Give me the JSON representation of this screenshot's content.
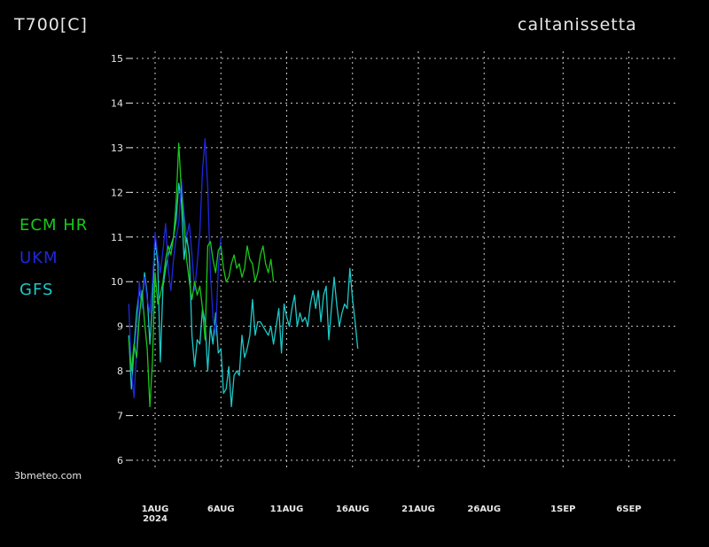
{
  "header": {
    "variable": "T700[C]",
    "location": "caltanissetta"
  },
  "credit": "3bmeteo.com",
  "colors": {
    "background": "#000000",
    "grid": "#c8c8c8",
    "text": "#e6e6e6"
  },
  "chart_data": {
    "type": "line",
    "title": "T700[C]",
    "ylim": [
      5.8,
      15.2
    ],
    "yticks": [
      6,
      7,
      8,
      9,
      10,
      11,
      12,
      13,
      14,
      15
    ],
    "xlim": [
      -2.2,
      42
    ],
    "xticks": [
      {
        "day": 0,
        "label": "1AUG",
        "sub": "2024"
      },
      {
        "day": 5,
        "label": "6AUG",
        "sub": ""
      },
      {
        "day": 10,
        "label": "11AUG",
        "sub": ""
      },
      {
        "day": 15,
        "label": "16AUG",
        "sub": ""
      },
      {
        "day": 20,
        "label": "21AUG",
        "sub": ""
      },
      {
        "day": 25,
        "label": "26AUG",
        "sub": ""
      },
      {
        "day": 31,
        "label": "1SEP",
        "sub": ""
      },
      {
        "day": 36,
        "label": "6SEP",
        "sub": ""
      }
    ],
    "grid": true,
    "legend_position": "left",
    "series": [
      {
        "name": "ECM HR",
        "color": "#19c819",
        "x": [
          -2.0,
          -1.8,
          -1.6,
          -1.4,
          -1.2,
          -1.0,
          -0.8,
          -0.6,
          -0.4,
          -0.2,
          0.0,
          0.2,
          0.4,
          0.6,
          0.8,
          1.0,
          1.2,
          1.4,
          1.6,
          1.8,
          2.0,
          2.2,
          2.4,
          2.6,
          2.8,
          3.0,
          3.2,
          3.4,
          3.6,
          3.8,
          4.0,
          4.2,
          4.4,
          4.6,
          4.8,
          5.0,
          5.2,
          5.4,
          5.6,
          5.8,
          6.0,
          6.2,
          6.4,
          6.6,
          6.8,
          7.0,
          7.2,
          7.4,
          7.6,
          7.8,
          8.0,
          8.2,
          8.4,
          8.6,
          8.8,
          9.0
        ],
        "y": [
          8.7,
          8.0,
          8.6,
          8.3,
          9.2,
          9.8,
          9.1,
          8.5,
          7.2,
          8.2,
          10.2,
          9.5,
          9.7,
          10.0,
          10.5,
          10.8,
          10.6,
          11.0,
          11.8,
          13.1,
          12.0,
          11.3,
          10.5,
          10.0,
          9.6,
          10.0,
          9.7,
          9.9,
          9.4,
          8.7,
          10.8,
          10.9,
          10.5,
          10.2,
          10.7,
          10.8,
          10.3,
          10.0,
          10.1,
          10.4,
          10.6,
          10.3,
          10.4,
          10.1,
          10.3,
          10.8,
          10.5,
          10.4,
          10.0,
          10.2,
          10.6,
          10.8,
          10.4,
          10.2,
          10.5,
          10.0
        ]
      },
      {
        "name": "UKM",
        "color": "#1e28dc",
        "x": [
          -2.0,
          -1.8,
          -1.6,
          -1.4,
          -1.2,
          -1.0,
          -0.8,
          -0.6,
          -0.4,
          -0.2,
          0.0,
          0.2,
          0.4,
          0.6,
          0.8,
          1.0,
          1.2,
          1.4,
          1.6,
          1.8,
          2.0,
          2.2,
          2.4,
          2.6,
          2.8,
          3.0,
          3.2,
          3.4,
          3.6,
          3.8,
          4.0,
          4.2,
          4.4,
          4.6,
          4.8,
          5.0
        ],
        "y": [
          9.5,
          8.0,
          7.4,
          8.5,
          10.0,
          9.4,
          10.1,
          9.6,
          9.3,
          10.0,
          11.1,
          10.6,
          10.2,
          10.7,
          11.3,
          10.3,
          9.8,
          10.5,
          11.0,
          11.3,
          12.3,
          11.5,
          11.0,
          11.3,
          10.6,
          9.8,
          10.4,
          11.1,
          12.5,
          13.2,
          12.1,
          10.2,
          9.2,
          8.8,
          10.3,
          11.0
        ]
      },
      {
        "name": "GFS",
        "color": "#1ec8c8",
        "x": [
          -2.0,
          -1.8,
          -1.6,
          -1.4,
          -1.2,
          -1.0,
          -0.8,
          -0.6,
          -0.4,
          -0.2,
          0.0,
          0.2,
          0.4,
          0.6,
          0.8,
          1.0,
          1.2,
          1.4,
          1.6,
          1.8,
          2.0,
          2.2,
          2.4,
          2.6,
          2.8,
          3.0,
          3.2,
          3.4,
          3.6,
          3.8,
          4.0,
          4.2,
          4.4,
          4.6,
          4.8,
          5.0,
          5.2,
          5.4,
          5.6,
          5.8,
          6.0,
          6.2,
          6.4,
          6.6,
          6.8,
          7.0,
          7.2,
          7.4,
          7.6,
          7.8,
          8.0,
          8.2,
          8.4,
          8.6,
          8.8,
          9.0,
          9.2,
          9.4,
          9.6,
          9.8,
          10.0,
          10.2,
          10.4,
          10.6,
          10.8,
          11.0,
          11.2,
          11.4,
          11.6,
          11.8,
          12.0,
          12.2,
          12.4,
          12.6,
          12.8,
          13.0,
          13.2,
          13.4,
          13.6,
          13.8,
          14.0,
          14.2,
          14.4,
          14.6,
          14.8,
          15.0,
          15.2,
          15.4
        ],
        "y": [
          8.8,
          7.6,
          8.5,
          9.3,
          9.8,
          9.5,
          10.2,
          9.7,
          8.6,
          9.5,
          11.0,
          10.4,
          8.2,
          9.9,
          10.3,
          10.6,
          10.8,
          11.0,
          11.4,
          12.2,
          11.8,
          10.5,
          11.0,
          10.6,
          8.8,
          8.1,
          8.7,
          8.6,
          9.4,
          9.1,
          8.0,
          9.0,
          8.6,
          9.3,
          8.4,
          8.5,
          7.5,
          7.6,
          8.1,
          7.2,
          7.9,
          8.0,
          7.9,
          8.8,
          8.3,
          8.5,
          8.8,
          9.6,
          8.8,
          9.1,
          9.1,
          9.0,
          8.9,
          8.8,
          9.0,
          8.6,
          9.0,
          9.4,
          8.4,
          9.5,
          9.2,
          9.0,
          9.4,
          9.7,
          9.0,
          9.3,
          9.1,
          9.2,
          9.0,
          9.5,
          9.8,
          9.4,
          9.8,
          9.1,
          9.7,
          9.9,
          8.7,
          9.4,
          10.1,
          9.5,
          9.0,
          9.3,
          9.5,
          9.4,
          10.3,
          9.6,
          9.1,
          8.5
        ]
      }
    ]
  }
}
